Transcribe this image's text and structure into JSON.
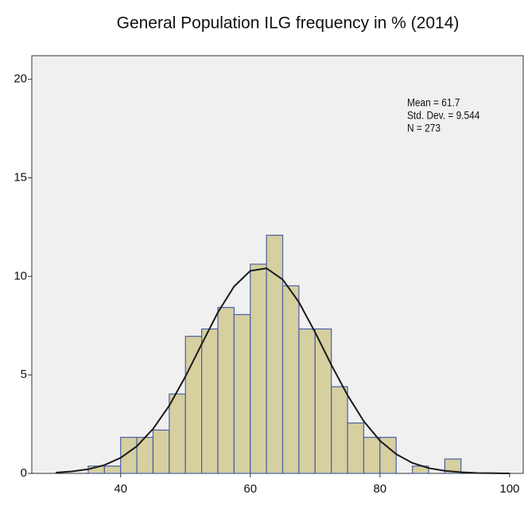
{
  "chart_data": {
    "type": "histogram",
    "title": "General Population ILG frequency in % (2014)",
    "annotations": [
      "Mean = 61.7",
      "Std. Dev. = 9.544",
      "N = 273"
    ],
    "bins": [
      35,
      37.5,
      40,
      42.5,
      45,
      47.5,
      50,
      52.5,
      55,
      57.5,
      60,
      62.5,
      65,
      67.5,
      70,
      72.5,
      75,
      77.5,
      80,
      82.5,
      85,
      87.5,
      90,
      92.5
    ],
    "counts": [
      0.37,
      0.37,
      1.83,
      1.83,
      2.2,
      4.03,
      6.96,
      7.33,
      8.42,
      8.06,
      10.62,
      12.09,
      9.52,
      7.33,
      7.33,
      4.4,
      2.56,
      1.83,
      1.83,
      0,
      0.37,
      0,
      0.73
    ],
    "color": "#d6cf9f",
    "edge_color": "#4a5fa8",
    "fit_curve": {
      "x": [
        30,
        32.5,
        35,
        37.5,
        40,
        42.5,
        45,
        47.5,
        50,
        52.5,
        55,
        57.5,
        60,
        62.5,
        65,
        67.5,
        70,
        72.5,
        75,
        77.5,
        80,
        82.5,
        85,
        87.5,
        90,
        92.5,
        95,
        97.5,
        100
      ],
      "values": [
        0.04,
        0.1,
        0.21,
        0.42,
        0.79,
        1.38,
        2.26,
        3.44,
        4.92,
        6.56,
        8.17,
        9.49,
        10.28,
        10.41,
        9.84,
        8.69,
        7.16,
        5.51,
        3.97,
        2.65,
        1.66,
        0.98,
        0.53,
        0.27,
        0.13,
        0.06,
        0.02,
        0.01,
        0
      ],
      "color": "#1a1a1a"
    },
    "xlim": [
      26.3,
      102.1
    ],
    "ylim": [
      0,
      21.2
    ],
    "xticks": [
      40,
      60,
      80,
      100
    ],
    "yticks": [
      0,
      5,
      10,
      15,
      20
    ]
  }
}
